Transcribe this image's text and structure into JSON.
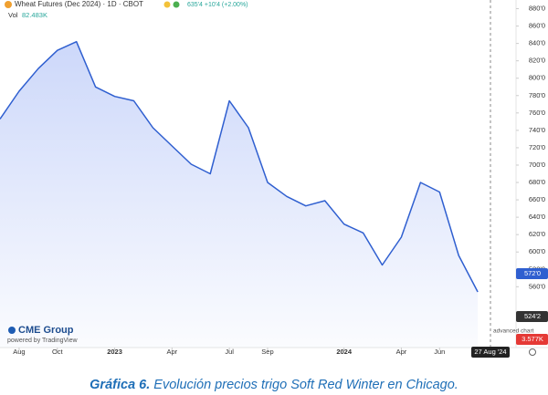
{
  "header": {
    "symbol": "Wheat Futures (Dec 2024) · 1D · CBOT",
    "quote": "635'4 +10'4 (+2.00%)",
    "vol_label": "Vol",
    "vol_value": "82.483K"
  },
  "branding": {
    "logo": "CME Group",
    "powered": "powered by TradingView",
    "advanced": "advanced chart"
  },
  "badges": {
    "last_price": "572'0",
    "low_price": "524'2",
    "volume": "3.577K",
    "crosshair_date": "27 Aug '24"
  },
  "caption": {
    "number": "Gráfica 6.",
    "text": "Evolución precios trigo Soft Red Winter en Chicago."
  },
  "chart_data": {
    "type": "line",
    "color": "#2f5fd0",
    "grid": false,
    "x": [
      "2022-07",
      "2022-08",
      "2022-09",
      "2022-10",
      "2022-11",
      "2022-12",
      "2023-01",
      "2023-02",
      "2023-03",
      "2023-04",
      "2023-05",
      "2023-06",
      "2023-07",
      "2023-08",
      "2023-09",
      "2023-10",
      "2023-11",
      "2023-12",
      "2024-01",
      "2024-02",
      "2024-03",
      "2024-04",
      "2024-05",
      "2024-06",
      "2024-07",
      "2024-08"
    ],
    "values": [
      753,
      785,
      811,
      832,
      842,
      790,
      779,
      774,
      743,
      722,
      701,
      690,
      774,
      743,
      680,
      664,
      653,
      659,
      632,
      622,
      585,
      617,
      680,
      669,
      596,
      554
    ],
    "xlim": [
      "2022-07",
      "2024-10"
    ],
    "xticks": [
      {
        "value": "2022-08",
        "label": "Aug"
      },
      {
        "value": "2022-10",
        "label": "Oct"
      },
      {
        "value": "2023-01",
        "label": "2023"
      },
      {
        "value": "2023-04",
        "label": "Apr"
      },
      {
        "value": "2023-07",
        "label": "Jul"
      },
      {
        "value": "2023-09",
        "label": "Sep"
      },
      {
        "value": "2024-01",
        "label": "2024"
      },
      {
        "value": "2024-04",
        "label": "Apr"
      },
      {
        "value": "2024-06",
        "label": "Jun"
      }
    ],
    "ylim": [
      490,
      890
    ],
    "yticks": [
      {
        "value": 560,
        "label": "560'0"
      },
      {
        "value": 580,
        "label": "580'0"
      },
      {
        "value": 600,
        "label": "600'0"
      },
      {
        "value": 620,
        "label": "620'0"
      },
      {
        "value": 640,
        "label": "640'0"
      },
      {
        "value": 660,
        "label": "660'0"
      },
      {
        "value": 680,
        "label": "680'0"
      },
      {
        "value": 700,
        "label": "700'0"
      },
      {
        "value": 720,
        "label": "720'0"
      },
      {
        "value": 740,
        "label": "740'0"
      },
      {
        "value": 760,
        "label": "760'0"
      },
      {
        "value": 780,
        "label": "780'0"
      },
      {
        "value": 800,
        "label": "800'0"
      },
      {
        "value": 820,
        "label": "820'0"
      },
      {
        "value": 840,
        "label": "840'0"
      },
      {
        "value": 860,
        "label": "860'0"
      },
      {
        "value": 880,
        "label": "880'0"
      }
    ]
  }
}
